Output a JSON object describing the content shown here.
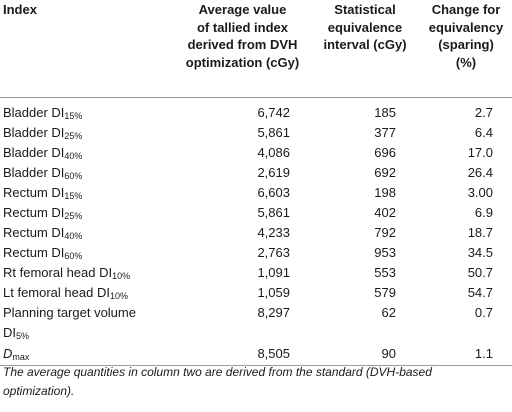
{
  "headers": {
    "index": "Index",
    "col2": [
      "Average value",
      "of tallied index",
      "derived from DVH",
      "optimization (cGy)"
    ],
    "col3": [
      "Statistical",
      "equivalence",
      "interval (cGy)"
    ],
    "col4": [
      "Change for",
      "equivalency",
      "(sparing)",
      "(%)"
    ]
  },
  "rows": [
    {
      "label": "Bladder DI",
      "sub": "15%",
      "avg": "6,742",
      "interval": "185",
      "change": "2.7"
    },
    {
      "label": "Bladder DI",
      "sub": "25%",
      "avg": "5,861",
      "interval": "377",
      "change": "6.4"
    },
    {
      "label": "Bladder DI",
      "sub": "40%",
      "avg": "4,086",
      "interval": "696",
      "change": "17.0"
    },
    {
      "label": "Bladder DI",
      "sub": "60%",
      "avg": "2,619",
      "interval": "692",
      "change": "26.4"
    },
    {
      "label": "Rectum DI",
      "sub": "15%",
      "avg": "6,603",
      "interval": "198",
      "change": "3.00"
    },
    {
      "label": "Rectum DI",
      "sub": "25%",
      "avg": "5,861",
      "interval": "402",
      "change": "6.9"
    },
    {
      "label": "Rectum DI",
      "sub": "40%",
      "avg": "4,233",
      "interval": "792",
      "change": "18.7"
    },
    {
      "label": "Rectum DI",
      "sub": "60%",
      "avg": "2,763",
      "interval": "953",
      "change": "34.5"
    },
    {
      "label": "Rt femoral head DI",
      "sub": "10%",
      "avg": "1,091",
      "interval": "553",
      "change": "50.7"
    },
    {
      "label": "Lt femoral head DI",
      "sub": "10%",
      "avg": "1,059",
      "interval": "579",
      "change": "54.7"
    }
  ],
  "ptv": {
    "label": "Planning target volume",
    "label2": "DI",
    "sub": "5%",
    "avg": "8,297",
    "interval": "62",
    "change": "0.7"
  },
  "dmax": {
    "label": "D",
    "sub": "max",
    "avg": "8,505",
    "interval": "90",
    "change": "1.1"
  },
  "footnote": "The average quantities in column two are derived from the standard (DVH-based optimization)."
}
